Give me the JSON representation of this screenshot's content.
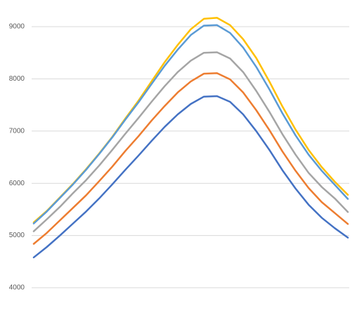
{
  "chart_data": {
    "type": "line",
    "categories": [
      null,
      null,
      null,
      null,
      null,
      null,
      null,
      null,
      null,
      null,
      null,
      null,
      null,
      null,
      null,
      null,
      null,
      null,
      null,
      null,
      null,
      null,
      null,
      null,
      null
    ],
    "series": [
      {
        "color": "#4472c4",
        "values": [
          4580,
          4780,
          5000,
          5230,
          5460,
          5710,
          5980,
          6260,
          6530,
          6810,
          7080,
          7320,
          7520,
          7660,
          7670,
          7560,
          7320,
          7000,
          6640,
          6250,
          5900,
          5590,
          5340,
          5140,
          4960
        ]
      },
      {
        "color": "#ed7d31",
        "values": [
          4840,
          5050,
          5290,
          5530,
          5770,
          6040,
          6320,
          6620,
          6900,
          7200,
          7480,
          7740,
          7950,
          8100,
          8110,
          7990,
          7740,
          7400,
          7020,
          6610,
          6240,
          5910,
          5640,
          5430,
          5220
        ]
      },
      {
        "color": "#a5a5a5",
        "values": [
          5080,
          5310,
          5550,
          5810,
          6060,
          6340,
          6640,
          6950,
          7250,
          7560,
          7860,
          8130,
          8350,
          8500,
          8510,
          8390,
          8130,
          7770,
          7370,
          6940,
          6550,
          6200,
          5930,
          5710,
          5450
        ]
      },
      {
        "color": "#ffc000",
        "values": [
          5250,
          5470,
          5730,
          5990,
          6270,
          6570,
          6890,
          7240,
          7580,
          7950,
          8320,
          8650,
          8950,
          9150,
          9170,
          9030,
          8760,
          8400,
          7950,
          7470,
          7030,
          6640,
          6310,
          6030,
          5780
        ]
      },
      {
        "color": "#5b9bd5",
        "values": [
          5230,
          5460,
          5720,
          5980,
          6260,
          6560,
          6880,
          7220,
          7550,
          7900,
          8250,
          8560,
          8840,
          9020,
          9030,
          8880,
          8600,
          8230,
          7800,
          7340,
          6920,
          6550,
          6240,
          5970,
          5700
        ]
      }
    ],
    "ylim": [
      3600,
      9400
    ],
    "yticks": [
      4000,
      5000,
      6000,
      7000,
      8000,
      9000
    ],
    "grid": true
  }
}
